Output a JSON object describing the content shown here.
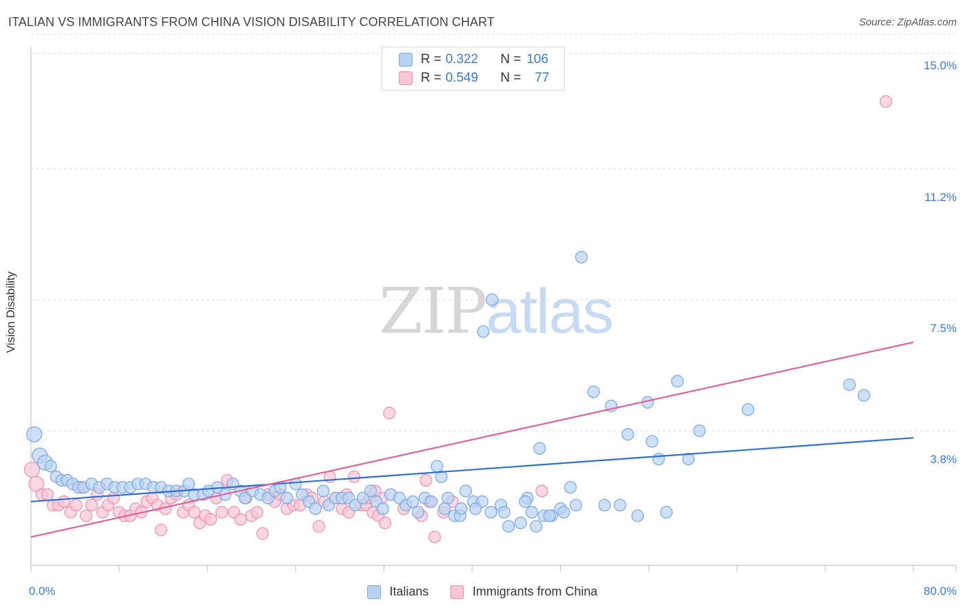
{
  "header": {
    "title": "ITALIAN VS IMMIGRANTS FROM CHINA VISION DISABILITY CORRELATION CHART",
    "source": "Source: ZipAtlas.com"
  },
  "watermark": {
    "zip": "ZIP",
    "atlas": "atlas"
  },
  "legend_top": {
    "rows": [
      {
        "r_label": "R =",
        "r_value": "0.322",
        "n_label": "N =",
        "n_value": "106"
      },
      {
        "r_label": "R =",
        "r_value": "0.549",
        "n_label": "N =",
        "n_value": "77"
      }
    ]
  },
  "legend_bottom": {
    "items": [
      "Italians",
      "Immigrants from China"
    ]
  },
  "colors": {
    "blue_fill": "#b9d3f3",
    "blue_stroke": "#7aa6e0",
    "blue_line": "#2e6fd0",
    "pink_fill": "#f9c6d6",
    "pink_stroke": "#ee8fb0",
    "pink_line": "#e0609a",
    "tick_text": "#3d7ad6",
    "grid": "#dddddd"
  },
  "chart_data": {
    "type": "scatter",
    "title": "ITALIAN VS IMMIGRANTS FROM CHINA VISION DISABILITY CORRELATION CHART",
    "xlabel": "",
    "ylabel": "Vision Disability",
    "xlim": [
      0,
      80
    ],
    "ylim": [
      0,
      15.5
    ],
    "y_ticks": [
      3.8,
      7.5,
      11.2,
      15.0
    ],
    "y_tick_labels": [
      "3.8%",
      "7.5%",
      "11.2%",
      "15.0%"
    ],
    "x_tick_labels": [
      "0.0%",
      "80.0%"
    ],
    "grid": true,
    "series": [
      {
        "name": "Italians",
        "R": 0.322,
        "N": 106,
        "trend": {
          "x": [
            0,
            80
          ],
          "y": [
            1.8,
            3.6
          ]
        },
        "points": [
          [
            0.3,
            3.7
          ],
          [
            0.8,
            3.1
          ],
          [
            1.3,
            2.9
          ],
          [
            1.8,
            2.8
          ],
          [
            2.3,
            2.5
          ],
          [
            2.8,
            2.4
          ],
          [
            3.3,
            2.4
          ],
          [
            3.8,
            2.3
          ],
          [
            4.3,
            2.2
          ],
          [
            4.8,
            2.2
          ],
          [
            5.5,
            2.3
          ],
          [
            6.2,
            2.2
          ],
          [
            6.9,
            2.3
          ],
          [
            7.6,
            2.2
          ],
          [
            8.3,
            2.2
          ],
          [
            9.0,
            2.2
          ],
          [
            9.7,
            2.3
          ],
          [
            10.4,
            2.3
          ],
          [
            11.1,
            2.2
          ],
          [
            11.8,
            2.2
          ],
          [
            12.5,
            2.1
          ],
          [
            13.2,
            2.1
          ],
          [
            13.9,
            2.1
          ],
          [
            14.3,
            2.3
          ],
          [
            14.8,
            2.0
          ],
          [
            15.6,
            2.0
          ],
          [
            16.1,
            2.1
          ],
          [
            16.9,
            2.2
          ],
          [
            17.6,
            2.0
          ],
          [
            18.3,
            2.3
          ],
          [
            19.0,
            2.1
          ],
          [
            19.4,
            1.9
          ],
          [
            20.1,
            2.1
          ],
          [
            20.8,
            2.0
          ],
          [
            21.5,
            1.9
          ],
          [
            22.1,
            2.1
          ],
          [
            22.6,
            2.2
          ],
          [
            23.2,
            1.9
          ],
          [
            24.0,
            2.3
          ],
          [
            24.6,
            2.0
          ],
          [
            25.2,
            1.8
          ],
          [
            25.8,
            1.6
          ],
          [
            26.5,
            2.1
          ],
          [
            27.0,
            1.7
          ],
          [
            27.6,
            1.9
          ],
          [
            28.2,
            1.9
          ],
          [
            28.8,
            1.9
          ],
          [
            29.4,
            1.7
          ],
          [
            30.1,
            1.9
          ],
          [
            30.8,
            2.1
          ],
          [
            31.3,
            1.8
          ],
          [
            31.9,
            1.6
          ],
          [
            32.6,
            2.0
          ],
          [
            33.4,
            1.9
          ],
          [
            34.0,
            1.7
          ],
          [
            34.6,
            1.8
          ],
          [
            35.1,
            1.5
          ],
          [
            35.7,
            1.9
          ],
          [
            36.3,
            1.8
          ],
          [
            36.8,
            2.8
          ],
          [
            37.2,
            2.5
          ],
          [
            37.8,
            1.9
          ],
          [
            38.4,
            1.4
          ],
          [
            38.9,
            1.4
          ],
          [
            39.4,
            2.1
          ],
          [
            40.1,
            1.8
          ],
          [
            40.9,
            1.8
          ],
          [
            41.7,
            1.5
          ],
          [
            42.6,
            1.7
          ],
          [
            43.3,
            1.1
          ],
          [
            41.0,
            6.6
          ],
          [
            41.8,
            7.5
          ],
          [
            44.4,
            1.2
          ],
          [
            45.0,
            1.9
          ],
          [
            45.8,
            1.1
          ],
          [
            46.5,
            1.4
          ],
          [
            47.2,
            1.4
          ],
          [
            48.0,
            1.6
          ],
          [
            48.9,
            2.2
          ],
          [
            49.4,
            1.7
          ],
          [
            49.9,
            8.7
          ],
          [
            51.0,
            4.9
          ],
          [
            52.0,
            1.7
          ],
          [
            52.6,
            4.5
          ],
          [
            53.4,
            1.7
          ],
          [
            54.1,
            3.7
          ],
          [
            55.0,
            1.4
          ],
          [
            55.9,
            4.6
          ],
          [
            56.3,
            3.5
          ],
          [
            56.9,
            3.0
          ],
          [
            57.6,
            1.5
          ],
          [
            58.6,
            5.2
          ],
          [
            59.6,
            3.0
          ],
          [
            60.6,
            3.8
          ],
          [
            65.0,
            4.4
          ],
          [
            74.2,
            5.1
          ],
          [
            75.5,
            4.8
          ],
          [
            46.1,
            3.3
          ],
          [
            44.8,
            1.8
          ],
          [
            42.9,
            1.5
          ],
          [
            47.0,
            1.4
          ],
          [
            48.3,
            1.5
          ],
          [
            45.4,
            1.5
          ],
          [
            40.3,
            1.6
          ],
          [
            39.0,
            1.6
          ],
          [
            37.5,
            1.6
          ]
        ]
      },
      {
        "name": "Immigrants from China",
        "R": 0.549,
        "N": 77,
        "trend": {
          "x": [
            0,
            80
          ],
          "y": [
            0.8,
            6.3
          ]
        },
        "points": [
          [
            0.1,
            2.7
          ],
          [
            0.5,
            2.3
          ],
          [
            1.0,
            2.0
          ],
          [
            1.5,
            2.0
          ],
          [
            2.0,
            1.7
          ],
          [
            2.5,
            1.7
          ],
          [
            3.0,
            1.8
          ],
          [
            3.6,
            1.5
          ],
          [
            4.1,
            1.7
          ],
          [
            4.6,
            2.2
          ],
          [
            5.0,
            1.4
          ],
          [
            5.5,
            1.7
          ],
          [
            6.0,
            2.0
          ],
          [
            6.5,
            1.5
          ],
          [
            7.0,
            1.7
          ],
          [
            7.5,
            1.9
          ],
          [
            8.0,
            1.5
          ],
          [
            8.5,
            1.4
          ],
          [
            9.0,
            1.4
          ],
          [
            9.5,
            1.6
          ],
          [
            10.0,
            1.5
          ],
          [
            10.5,
            1.8
          ],
          [
            11.0,
            1.9
          ],
          [
            11.5,
            1.7
          ],
          [
            11.8,
            1.0
          ],
          [
            12.2,
            1.6
          ],
          [
            12.7,
            1.9
          ],
          [
            13.2,
            2.0
          ],
          [
            13.8,
            1.5
          ],
          [
            14.3,
            1.7
          ],
          [
            14.8,
            1.5
          ],
          [
            15.3,
            1.2
          ],
          [
            15.8,
            1.4
          ],
          [
            16.3,
            1.3
          ],
          [
            16.8,
            1.9
          ],
          [
            17.3,
            1.5
          ],
          [
            17.8,
            2.4
          ],
          [
            18.4,
            1.5
          ],
          [
            19.0,
            1.3
          ],
          [
            19.5,
            1.9
          ],
          [
            20.0,
            1.4
          ],
          [
            20.5,
            1.5
          ],
          [
            21.0,
            0.9
          ],
          [
            21.5,
            2.0
          ],
          [
            22.1,
            1.8
          ],
          [
            22.6,
            2.0
          ],
          [
            23.2,
            1.6
          ],
          [
            23.8,
            1.7
          ],
          [
            24.4,
            1.7
          ],
          [
            25.0,
            2.0
          ],
          [
            25.5,
            1.9
          ],
          [
            26.1,
            1.1
          ],
          [
            26.6,
            1.8
          ],
          [
            27.1,
            2.5
          ],
          [
            27.6,
            1.9
          ],
          [
            28.2,
            1.6
          ],
          [
            28.8,
            1.5
          ],
          [
            29.3,
            2.5
          ],
          [
            29.9,
            1.7
          ],
          [
            30.4,
            1.7
          ],
          [
            31.0,
            1.5
          ],
          [
            31.5,
            1.4
          ],
          [
            32.1,
            1.2
          ],
          [
            30.7,
            1.9
          ],
          [
            33.8,
            1.6
          ],
          [
            35.4,
            1.4
          ],
          [
            35.8,
            2.4
          ],
          [
            36.6,
            0.8
          ],
          [
            37.4,
            1.5
          ],
          [
            38.2,
            1.8
          ],
          [
            28.6,
            2.0
          ],
          [
            31.8,
            1.9
          ],
          [
            32.5,
            4.3
          ],
          [
            31.2,
            2.1
          ],
          [
            46.3,
            2.1
          ],
          [
            36.1,
            1.8
          ],
          [
            77.5,
            13.1
          ]
        ]
      }
    ]
  }
}
